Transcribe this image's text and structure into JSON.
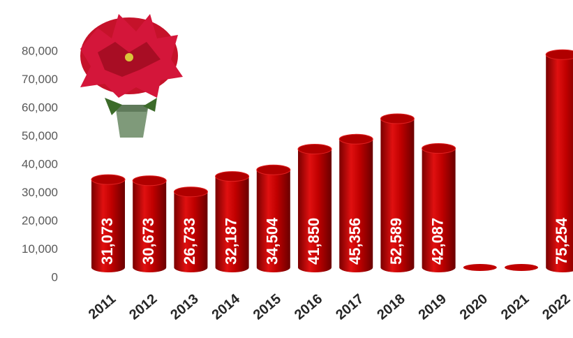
{
  "chart_data": {
    "type": "bar",
    "categories": [
      "2011",
      "2012",
      "2013",
      "2014",
      "2015",
      "2016",
      "2017",
      "2018",
      "2019",
      "2020",
      "2021",
      "2022"
    ],
    "values": [
      31073,
      30673,
      26733,
      32187,
      34504,
      41850,
      45356,
      52589,
      42087,
      null,
      null,
      75254
    ],
    "value_labels": [
      "31,073",
      "30,673",
      "26,733",
      "32,187",
      "34,504",
      "41,850",
      "45,356",
      "52,589",
      "42,087",
      null,
      null,
      "75,254"
    ],
    "color": "#c00000",
    "ylim": [
      0,
      80000
    ],
    "yticks": [
      0,
      {
        "value": 10000,
        "label": "10,000"
      },
      {
        "value": 20000,
        "label": "20,000"
      },
      {
        "value": 30000,
        "label": "30,000"
      },
      {
        "value": 40000,
        "label": "40,000"
      },
      {
        "value": 50000,
        "label": "50,000"
      },
      {
        "value": 60000,
        "label": "60,000"
      },
      {
        "value": 70000,
        "label": "70,000"
      },
      {
        "value": 80000,
        "label": "80,000"
      }
    ],
    "grid": false
  }
}
